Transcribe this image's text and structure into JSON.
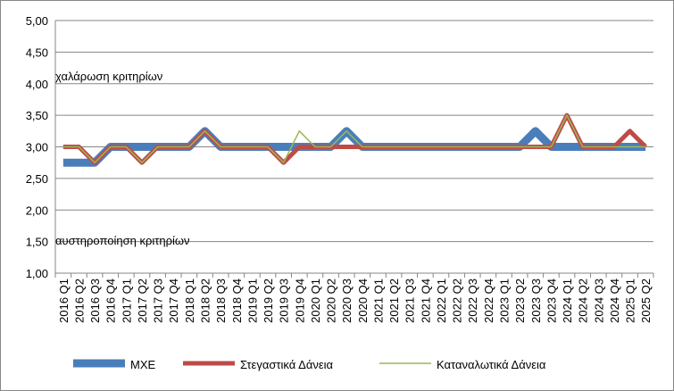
{
  "chart_data": {
    "type": "line",
    "categories": [
      "2016 Q1",
      "2016 Q2",
      "2016 Q3",
      "2016 Q4",
      "2017 Q1",
      "2017 Q2",
      "2017 Q3",
      "2017 Q4",
      "2018 Q1",
      "2018 Q2",
      "2018 Q3",
      "2018 Q4",
      "2019 Q1",
      "2019 Q2",
      "2019 Q3",
      "2019 Q4",
      "2020 Q1",
      "2020 Q2",
      "2020 Q3",
      "2020 Q4",
      "2021 Q1",
      "2021 Q2",
      "2021 Q3",
      "2021 Q4",
      "2022 Q1",
      "2022 Q2",
      "2022 Q3",
      "2022 Q4",
      "2023 Q1",
      "2023 Q2",
      "2023 Q3",
      "2023 Q4",
      "2024 Q1",
      "2024 Q2",
      "2024 Q3",
      "2024 Q4",
      "2025 Q1",
      "2025 Q2"
    ],
    "series": [
      {
        "name": "MXE",
        "color": "#4a7ebb",
        "values": [
          2.75,
          2.75,
          2.75,
          3,
          3,
          3,
          3,
          3,
          3,
          3.25,
          3,
          3,
          3,
          3,
          3,
          3,
          3,
          3,
          3.25,
          3,
          3,
          3,
          3,
          3,
          3,
          3,
          3,
          3,
          3,
          3,
          3.25,
          3,
          3,
          3,
          3,
          3,
          3,
          3
        ]
      },
      {
        "name": "Στεγαστικά Δάνεια",
        "color": "#be4b48",
        "values": [
          3,
          3,
          2.75,
          3,
          3,
          2.75,
          3,
          3,
          3,
          3.25,
          3,
          3,
          3,
          3,
          2.75,
          3,
          3,
          3,
          3,
          3,
          3,
          3,
          3,
          3,
          3,
          3,
          3,
          3,
          3,
          3,
          3,
          3,
          3.5,
          3,
          3,
          3,
          3.25,
          3
        ]
      },
      {
        "name": "Καταναλωτικά Δάνεια",
        "color": "#98b954",
        "values": [
          3,
          3,
          2.75,
          3,
          3,
          2.75,
          3,
          3,
          3,
          3.25,
          3,
          3,
          3,
          3,
          2.75,
          3.25,
          3,
          3,
          3.25,
          3,
          3,
          3,
          3,
          3,
          3,
          3,
          3,
          3,
          3,
          3,
          3,
          3,
          3.5,
          3,
          3,
          3,
          3,
          3
        ]
      }
    ],
    "annotations": [
      "χαλάρωση κριτηρίων",
      "αυστηροποίηση κριτηρίων"
    ],
    "ylim": [
      1,
      5
    ],
    "yticks": [
      {
        "value": 1,
        "label": "1,00"
      },
      {
        "value": 1.5,
        "label": "1,50"
      },
      {
        "value": 2,
        "label": "2,00"
      },
      {
        "value": 2.5,
        "label": "2,50"
      },
      {
        "value": 3,
        "label": "3,00"
      },
      {
        "value": 3.5,
        "label": "3,50"
      },
      {
        "value": 4,
        "label": "4,00"
      },
      {
        "value": 4.5,
        "label": "4,50"
      },
      {
        "value": 5,
        "label": "5,00"
      }
    ],
    "grid": true,
    "legend": "bottom"
  }
}
